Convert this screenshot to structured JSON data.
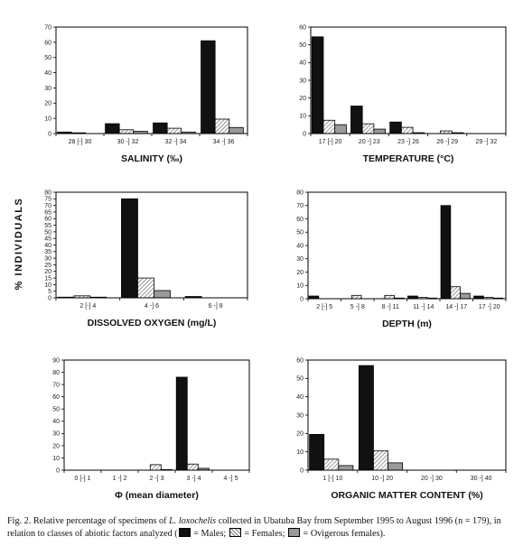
{
  "y_axis_label": "% INDIVIDUALS",
  "caption": {
    "fig_label": "Fig. 2.",
    "text_1": "Relative percentage of specimens of",
    "species": "L. loxochelis",
    "text_2": "collected in Ubatuba Bay from September 1995 to August 1996 (n = 179), in relation to classes of abiotic factors analyzed (",
    "legend_males": "= Males;",
    "legend_females": "= Females;",
    "legend_ovigerous": "= Ovigerous females).",
    "text_end": ""
  },
  "series_names": [
    "Males",
    "Females",
    "Ovigerous females"
  ],
  "colors": {
    "males": "#111111",
    "females_hatch": "#777777",
    "ovigerous": "#9a9a9a",
    "axis": "#000000"
  },
  "chart_data": [
    {
      "type": "bar",
      "xlabel": "SALINITY (‰)",
      "ylim": [
        0,
        70
      ],
      "yticks": [
        0,
        10,
        20,
        30,
        40,
        50,
        60,
        70
      ],
      "categories": [
        "28 [-] 30",
        "30 -] 32",
        "32 -] 34",
        "34 -] 36"
      ],
      "series": [
        {
          "values": [
            1,
            6.5,
            7,
            61
          ]
        },
        {
          "values": [
            0.5,
            2.5,
            3.5,
            9.5
          ]
        },
        {
          "values": [
            0,
            1.5,
            1,
            4
          ]
        }
      ]
    },
    {
      "type": "bar",
      "xlabel": "TEMPERATURE (°C)",
      "ylim": [
        0,
        60
      ],
      "yticks": [
        0,
        10,
        20,
        30,
        40,
        50,
        60
      ],
      "categories": [
        "17 [-] 20",
        "20 -] 23",
        "23 -] 26",
        "26 -] 29",
        "29 -] 32"
      ],
      "series": [
        {
          "values": [
            54.5,
            15.5,
            6.5,
            0,
            0
          ]
        },
        {
          "values": [
            7.5,
            5.5,
            3.5,
            1.5,
            0
          ]
        },
        {
          "values": [
            5,
            2.5,
            0.5,
            0.5,
            0
          ]
        }
      ]
    },
    {
      "type": "bar",
      "xlabel": "DISSOLVED OXYGEN (mg/L)",
      "ylim": [
        0,
        80
      ],
      "yticks": [
        0,
        5,
        10,
        15,
        20,
        25,
        30,
        35,
        40,
        45,
        50,
        55,
        60,
        65,
        70,
        75,
        80
      ],
      "categories": [
        "2 [-] 4",
        "4 -] 6",
        "6 -] 8"
      ],
      "series": [
        {
          "values": [
            0.5,
            75,
            1
          ]
        },
        {
          "values": [
            1.5,
            15,
            0
          ]
        },
        {
          "values": [
            0.5,
            5.5,
            0
          ]
        }
      ]
    },
    {
      "type": "bar",
      "xlabel": "DEPTH (m)",
      "ylim": [
        0,
        80
      ],
      "yticks": [
        0,
        10,
        20,
        30,
        40,
        50,
        60,
        70,
        80
      ],
      "categories": [
        "2 [-] 5",
        "5 -] 8",
        "8 -] 11",
        "11 -] 14",
        "14 -] 17",
        "17 -] 20"
      ],
      "series": [
        {
          "values": [
            2,
            0,
            0,
            2,
            70,
            2
          ]
        },
        {
          "values": [
            0,
            2.5,
            2.5,
            1,
            9,
            1
          ]
        },
        {
          "values": [
            0,
            0,
            0.5,
            0.5,
            4,
            0.5
          ]
        }
      ]
    },
    {
      "type": "bar",
      "xlabel": "Φ (mean diameter)",
      "ylim": [
        0,
        90
      ],
      "yticks": [
        0,
        10,
        20,
        30,
        40,
        50,
        60,
        70,
        80,
        90
      ],
      "categories": [
        "0 [-] 1",
        "1 -] 2",
        "2 -] 3",
        "3 -] 4",
        "4 -] 5"
      ],
      "series": [
        {
          "values": [
            0,
            0,
            0,
            76,
            0
          ]
        },
        {
          "values": [
            0,
            0,
            4.5,
            5,
            0
          ]
        },
        {
          "values": [
            0,
            0,
            0.5,
            1.5,
            0
          ]
        }
      ]
    },
    {
      "type": "bar",
      "xlabel": "ORGANIC MATTER CONTENT (%)",
      "ylim": [
        0,
        60
      ],
      "yticks": [
        0,
        10,
        20,
        30,
        40,
        50,
        60
      ],
      "categories": [
        "1 [-] 10",
        "10 -] 20",
        "20 -] 30",
        "30 -] 40"
      ],
      "series": [
        {
          "values": [
            19.5,
            57,
            0,
            0
          ]
        },
        {
          "values": [
            6,
            10.5,
            0,
            0
          ]
        },
        {
          "values": [
            2.5,
            4,
            0,
            0
          ]
        }
      ]
    }
  ]
}
